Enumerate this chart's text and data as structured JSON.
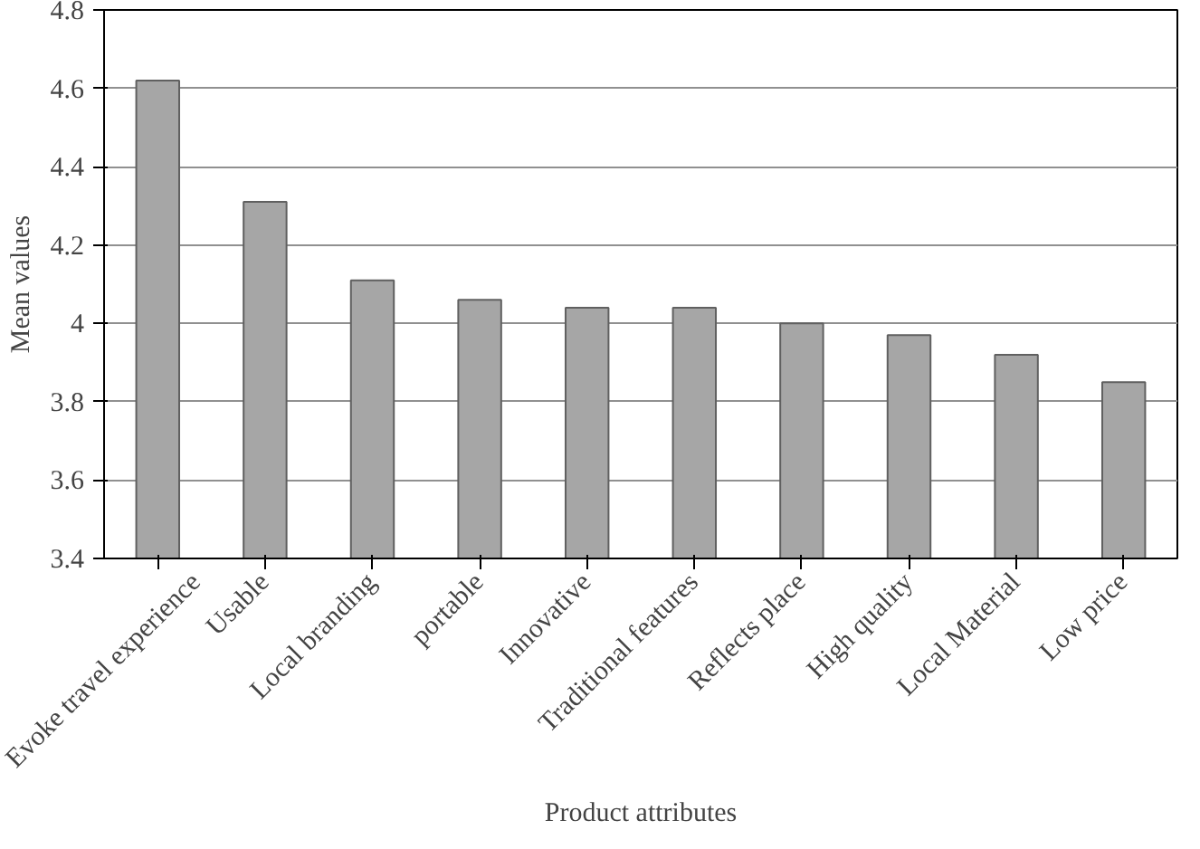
{
  "chart_data": {
    "type": "bar",
    "xlabel": "Product attributes",
    "ylabel": "Mean values",
    "categories": [
      "Evoke travel experience",
      "Usable",
      "Local branding",
      "portable",
      "Innovative",
      "Traditional features",
      "Reflects place",
      "High quality",
      "Local Material",
      "Low price"
    ],
    "values": [
      4.62,
      4.31,
      4.11,
      4.06,
      4.04,
      4.04,
      4.0,
      3.97,
      3.92,
      3.85
    ],
    "color": "#a6a6a6",
    "ylim": [
      3.4,
      4.8
    ],
    "yticks": [
      3.4,
      3.6,
      3.8,
      4,
      4.2,
      4.4,
      4.6,
      4.8
    ],
    "grid": "y"
  }
}
